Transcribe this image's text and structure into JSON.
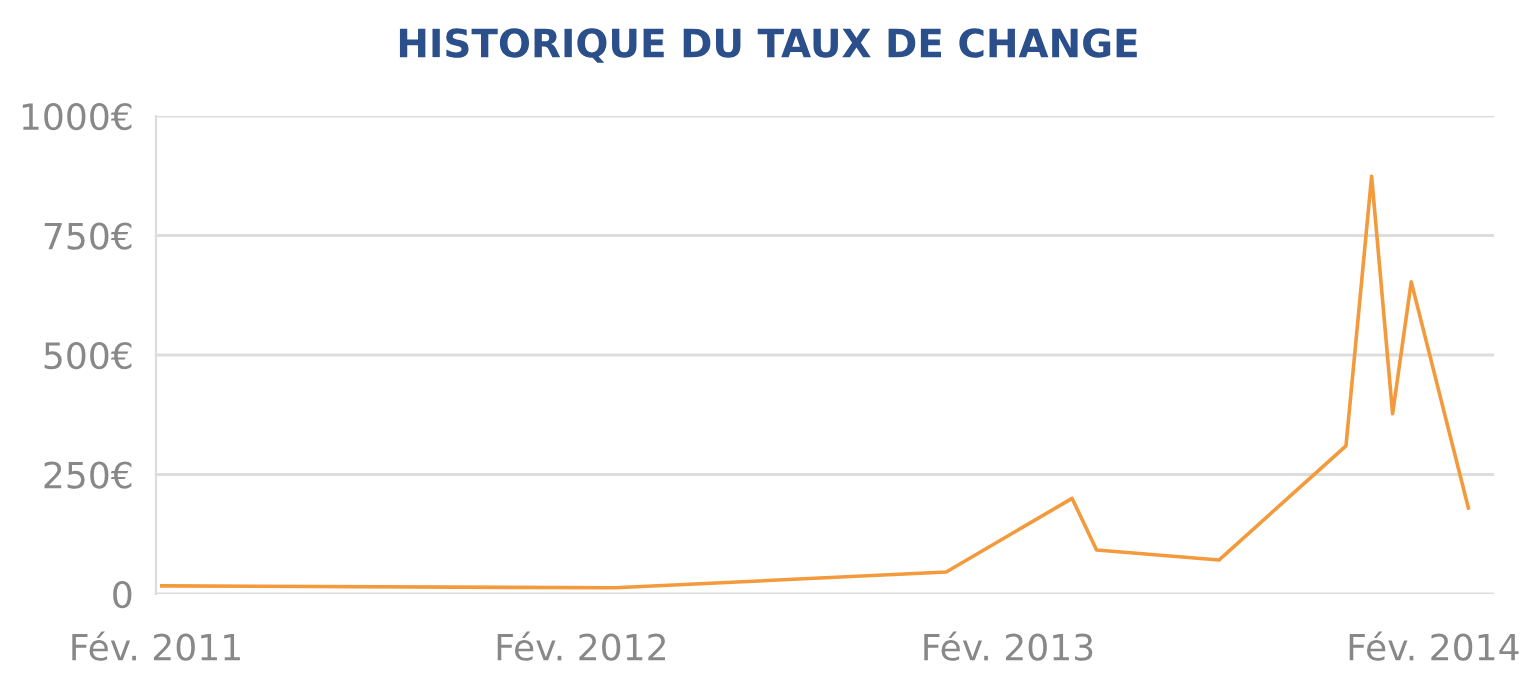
{
  "chart_data": {
    "type": "line",
    "title": "HISTORIQUE DU TAUX DE CHANGE",
    "x": [
      "2011-02-06",
      "2012-03-01",
      "2012-12-10",
      "2013-03-28",
      "2013-04-18",
      "2013-08-01",
      "2013-11-18",
      "2013-12-10",
      "2013-12-28",
      "2014-01-13",
      "2014-03-03"
    ],
    "series": [
      {
        "color": "#f39a3c",
        "values": [
          17,
          13,
          46,
          200,
          92,
          71,
          310,
          874,
          377,
          653,
          180
        ]
      }
    ],
    "xlim": [
      "2011-02-01",
      "2014-03-25"
    ],
    "xticks": [
      {
        "value": "2011-02-01",
        "label": "Fév. 2011"
      },
      {
        "value": "2012-02-01",
        "label": "Fév. 2012"
      },
      {
        "value": "2013-02-01",
        "label": "Fév. 2013"
      },
      {
        "value": "2014-02-01",
        "label": "Fév. 2014"
      }
    ],
    "ylim": [
      0,
      1000
    ],
    "yticks": [
      0,
      {
        "value": 250,
        "label": "250€"
      },
      {
        "value": 500,
        "label": "500€"
      },
      {
        "value": 750,
        "label": "750€"
      },
      {
        "value": 1000,
        "label": "1000€"
      }
    ],
    "grid": "y",
    "marker": "none",
    "line_style": "solid",
    "legend": false
  }
}
